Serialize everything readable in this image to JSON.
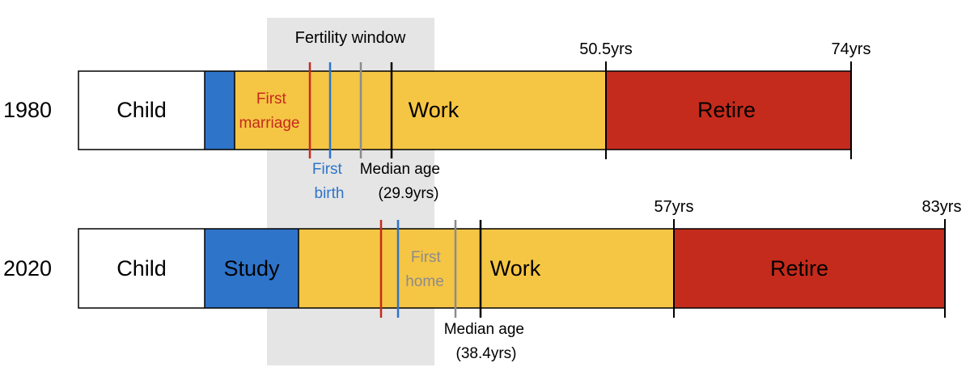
{
  "figure": {
    "window_label": "Fertility window",
    "colors": {
      "window": "#e5e5e5",
      "child": "#ffffff",
      "study": "#2e74c9",
      "work": "#f5c544",
      "retire": "#c52b1c",
      "first_marriage": "#c52b1c",
      "first_birth": "#2e74c9",
      "first_home": "#8c8c8c",
      "median_age": "#000000",
      "outline": "#000000"
    },
    "rows": [
      {
        "year": "1980",
        "child": "Child",
        "study": "",
        "work": "Work",
        "retire": "Retire",
        "retire_start_label": "50.5yrs",
        "end_label": "74yrs",
        "first_marriage": [
          "First",
          "marriage"
        ],
        "first_birth": [
          "First",
          "birth"
        ],
        "median_age": [
          "Median age",
          "(29.9yrs)"
        ]
      },
      {
        "year": "2020",
        "child": "Child",
        "study": "Study",
        "work": "Work",
        "retire": "Retire",
        "retire_start_label": "57yrs",
        "end_label": "83yrs",
        "first_home": [
          "First",
          "home"
        ],
        "median_age": [
          "Median age",
          "(38.4yrs)"
        ]
      }
    ]
  }
}
